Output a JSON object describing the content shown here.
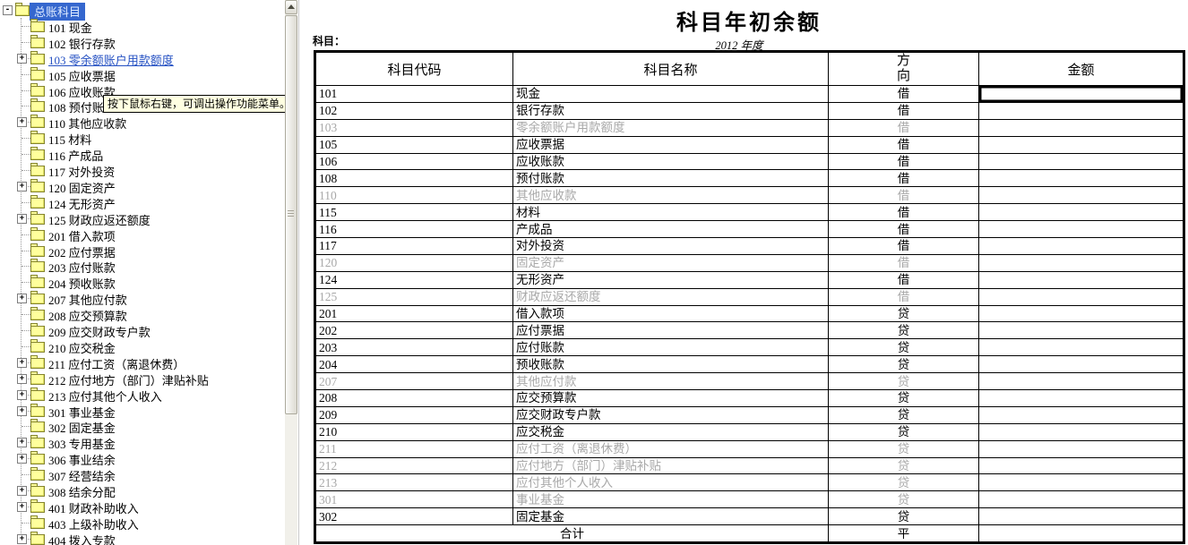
{
  "tree": {
    "root": {
      "label": "总账科目"
    },
    "items": [
      {
        "code": "101",
        "name": "现金",
        "expander": false,
        "link": false
      },
      {
        "code": "102",
        "name": "银行存款",
        "expander": false,
        "link": false
      },
      {
        "code": "103",
        "name": "零余额账户用款额度",
        "expander": true,
        "link": true
      },
      {
        "code": "105",
        "name": "应收票据",
        "expander": false,
        "link": false
      },
      {
        "code": "106",
        "name": "应收账款",
        "expander": false,
        "link": false
      },
      {
        "code": "108",
        "name": "预付账款",
        "expander": false,
        "link": false
      },
      {
        "code": "110",
        "name": "其他应收款",
        "expander": true,
        "link": false
      },
      {
        "code": "115",
        "name": "材料",
        "expander": false,
        "link": false
      },
      {
        "code": "116",
        "name": "产成品",
        "expander": false,
        "link": false
      },
      {
        "code": "117",
        "name": "对外投资",
        "expander": false,
        "link": false
      },
      {
        "code": "120",
        "name": "固定资产",
        "expander": true,
        "link": false
      },
      {
        "code": "124",
        "name": "无形资产",
        "expander": false,
        "link": false
      },
      {
        "code": "125",
        "name": "财政应返还额度",
        "expander": true,
        "link": false
      },
      {
        "code": "201",
        "name": "借入款项",
        "expander": false,
        "link": false
      },
      {
        "code": "202",
        "name": "应付票据",
        "expander": false,
        "link": false
      },
      {
        "code": "203",
        "name": "应付账款",
        "expander": false,
        "link": false
      },
      {
        "code": "204",
        "name": "预收账款",
        "expander": false,
        "link": false
      },
      {
        "code": "207",
        "name": "其他应付款",
        "expander": true,
        "link": false
      },
      {
        "code": "208",
        "name": "应交预算款",
        "expander": false,
        "link": false
      },
      {
        "code": "209",
        "name": "应交财政专户款",
        "expander": false,
        "link": false
      },
      {
        "code": "210",
        "name": "应交税金",
        "expander": false,
        "link": false
      },
      {
        "code": "211",
        "name": "应付工资（离退休费）",
        "expander": true,
        "link": false
      },
      {
        "code": "212",
        "name": "应付地方（部门）津贴补贴",
        "expander": true,
        "link": false
      },
      {
        "code": "213",
        "name": "应付其他个人收入",
        "expander": true,
        "link": false
      },
      {
        "code": "301",
        "name": "事业基金",
        "expander": true,
        "link": false
      },
      {
        "code": "302",
        "name": "固定基金",
        "expander": false,
        "link": false
      },
      {
        "code": "303",
        "name": "专用基金",
        "expander": true,
        "link": false
      },
      {
        "code": "306",
        "name": "事业结余",
        "expander": true,
        "link": false
      },
      {
        "code": "307",
        "name": "经营结余",
        "expander": false,
        "link": false
      },
      {
        "code": "308",
        "name": "结余分配",
        "expander": true,
        "link": false
      },
      {
        "code": "401",
        "name": "财政补助收入",
        "expander": true,
        "link": false
      },
      {
        "code": "403",
        "name": "上级补助收入",
        "expander": false,
        "link": false
      },
      {
        "code": "404",
        "name": "拨入专款",
        "expander": true,
        "link": false
      }
    ]
  },
  "tooltip": {
    "text": "按下鼠标右键，可调出操作功能菜单。"
  },
  "report": {
    "title": "科目年初余额",
    "subject_label": "科目：",
    "year_label": "2012 年度",
    "columns": {
      "code": "科目代码",
      "name": "科目名称",
      "direction": "方向",
      "amount": "金额"
    },
    "rows": [
      {
        "code": "101",
        "name": "现金",
        "direction": "借",
        "amount": "",
        "disabled": false,
        "selected_amount": true
      },
      {
        "code": "102",
        "name": "银行存款",
        "direction": "借",
        "amount": "",
        "disabled": false,
        "selected_amount": false
      },
      {
        "code": "103",
        "name": "零余额账户用款额度",
        "direction": "借",
        "amount": "",
        "disabled": true,
        "selected_amount": false
      },
      {
        "code": "105",
        "name": "应收票据",
        "direction": "借",
        "amount": "",
        "disabled": false,
        "selected_amount": false
      },
      {
        "code": "106",
        "name": "应收账款",
        "direction": "借",
        "amount": "",
        "disabled": false,
        "selected_amount": false
      },
      {
        "code": "108",
        "name": "预付账款",
        "direction": "借",
        "amount": "",
        "disabled": false,
        "selected_amount": false
      },
      {
        "code": "110",
        "name": "其他应收款",
        "direction": "借",
        "amount": "",
        "disabled": true,
        "selected_amount": false
      },
      {
        "code": "115",
        "name": "材料",
        "direction": "借",
        "amount": "",
        "disabled": false,
        "selected_amount": false
      },
      {
        "code": "116",
        "name": "产成品",
        "direction": "借",
        "amount": "",
        "disabled": false,
        "selected_amount": false
      },
      {
        "code": "117",
        "name": "对外投资",
        "direction": "借",
        "amount": "",
        "disabled": false,
        "selected_amount": false
      },
      {
        "code": "120",
        "name": "固定资产",
        "direction": "借",
        "amount": "",
        "disabled": true,
        "selected_amount": false
      },
      {
        "code": "124",
        "name": "无形资产",
        "direction": "借",
        "amount": "",
        "disabled": false,
        "selected_amount": false
      },
      {
        "code": "125",
        "name": "财政应返还额度",
        "direction": "借",
        "amount": "",
        "disabled": true,
        "selected_amount": false
      },
      {
        "code": "201",
        "name": "借入款项",
        "direction": "贷",
        "amount": "",
        "disabled": false,
        "selected_amount": false
      },
      {
        "code": "202",
        "name": "应付票据",
        "direction": "贷",
        "amount": "",
        "disabled": false,
        "selected_amount": false
      },
      {
        "code": "203",
        "name": "应付账款",
        "direction": "贷",
        "amount": "",
        "disabled": false,
        "selected_amount": false
      },
      {
        "code": "204",
        "name": "预收账款",
        "direction": "贷",
        "amount": "",
        "disabled": false,
        "selected_amount": false
      },
      {
        "code": "207",
        "name": "其他应付款",
        "direction": "贷",
        "amount": "",
        "disabled": true,
        "selected_amount": false
      },
      {
        "code": "208",
        "name": "应交预算款",
        "direction": "贷",
        "amount": "",
        "disabled": false,
        "selected_amount": false
      },
      {
        "code": "209",
        "name": "应交财政专户款",
        "direction": "贷",
        "amount": "",
        "disabled": false,
        "selected_amount": false
      },
      {
        "code": "210",
        "name": "应交税金",
        "direction": "贷",
        "amount": "",
        "disabled": false,
        "selected_amount": false
      },
      {
        "code": "211",
        "name": "应付工资（离退休费）",
        "direction": "贷",
        "amount": "",
        "disabled": true,
        "selected_amount": false
      },
      {
        "code": "212",
        "name": "应付地方（部门）津贴补贴",
        "direction": "贷",
        "amount": "",
        "disabled": true,
        "selected_amount": false
      },
      {
        "code": "213",
        "name": "应付其他个人收入",
        "direction": "贷",
        "amount": "",
        "disabled": true,
        "selected_amount": false
      },
      {
        "code": "301",
        "name": "事业基金",
        "direction": "贷",
        "amount": "",
        "disabled": true,
        "selected_amount": false
      },
      {
        "code": "302",
        "name": "固定基金",
        "direction": "贷",
        "amount": "",
        "disabled": false,
        "selected_amount": false
      }
    ],
    "total_row": {
      "label": "合计",
      "direction": "平",
      "amount": ""
    }
  },
  "colors": {
    "tree_selected_bg": "#3567ce",
    "tree_selected_text": "#dceaff",
    "tree_link": "#2551c3",
    "disabled_text": "#a8a8a8",
    "tooltip_bg": "#FFFFE1",
    "folder": "#FFFF9C"
  }
}
